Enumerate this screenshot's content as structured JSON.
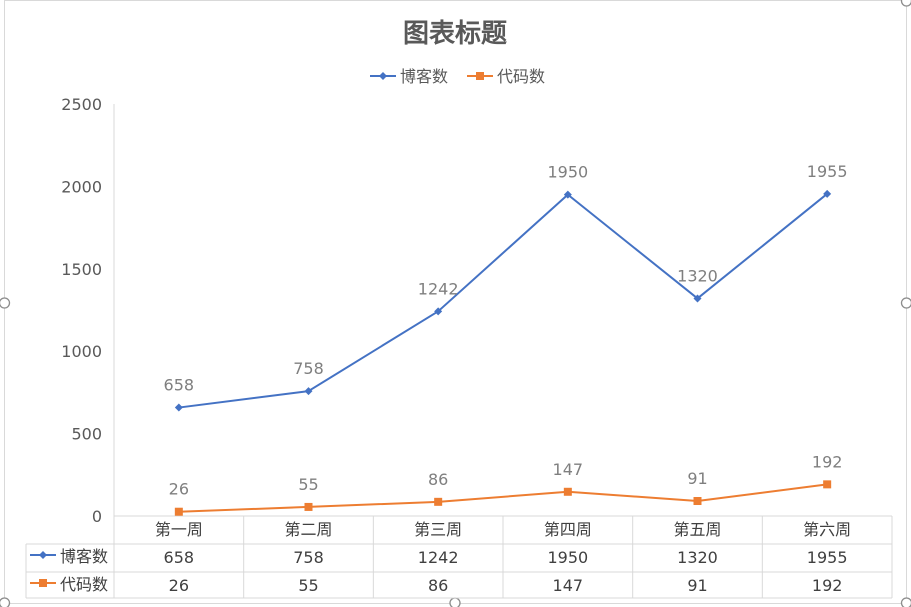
{
  "chart_data": {
    "type": "line",
    "title": "图表标题",
    "categories": [
      "第一周",
      "第二周",
      "第三周",
      "第四周",
      "第五周",
      "第六周"
    ],
    "series": [
      {
        "name": "博客数",
        "values": [
          658,
          758,
          1242,
          1950,
          1320,
          1955
        ],
        "color": "#4472c4",
        "marker": "diamond"
      },
      {
        "name": "代码数",
        "values": [
          26,
          55,
          86,
          147,
          91,
          192
        ],
        "color": "#ed7d31",
        "marker": "square"
      }
    ],
    "ylim": [
      0,
      2500
    ],
    "yticks": [
      "0",
      "500",
      "1000",
      "1500",
      "2000",
      "2500"
    ],
    "grid": false,
    "legend": "top",
    "data_table": true,
    "data_labels": true
  }
}
